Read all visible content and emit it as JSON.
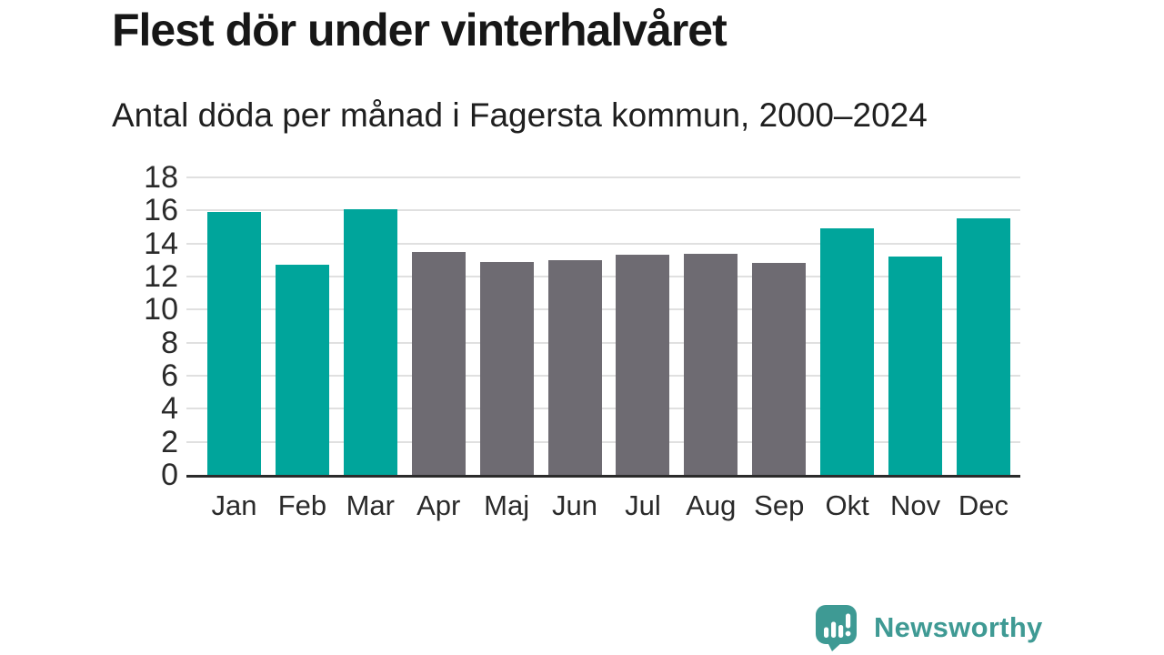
{
  "header": {
    "title": "Flest dör under vinterhalvåret",
    "subtitle": "Antal döda per månad i Fagersta kommun, 2000–2024"
  },
  "chart_data": {
    "type": "bar",
    "categories": [
      "Jan",
      "Feb",
      "Mar",
      "Apr",
      "Maj",
      "Jun",
      "Jul",
      "Aug",
      "Sep",
      "Okt",
      "Nov",
      "Dec"
    ],
    "values": [
      15.9,
      12.7,
      16.1,
      13.5,
      12.9,
      13.0,
      13.3,
      13.4,
      12.8,
      14.9,
      13.2,
      15.5
    ],
    "bar_colors": [
      "highlight",
      "highlight",
      "highlight",
      "muted",
      "muted",
      "muted",
      "muted",
      "muted",
      "muted",
      "highlight",
      "highlight",
      "highlight"
    ],
    "title": "Flest dör under vinterhalvåret",
    "subtitle": "Antal döda per månad i Fagersta kommun, 2000–2024",
    "xlabel": "",
    "ylabel": "",
    "ylim": [
      0,
      18
    ],
    "yticks": [
      0,
      2,
      4,
      6,
      8,
      10,
      12,
      14,
      16,
      18
    ],
    "grid": "horizontal-only",
    "legend": "none",
    "colors": {
      "highlight": "#00a59b",
      "muted": "#6e6b72"
    }
  },
  "footer": {
    "brand": "Newsworthy",
    "logo_icon": "newsworthy-speech-bubble-barchart-icon",
    "brand_color": "#3f9a94"
  }
}
